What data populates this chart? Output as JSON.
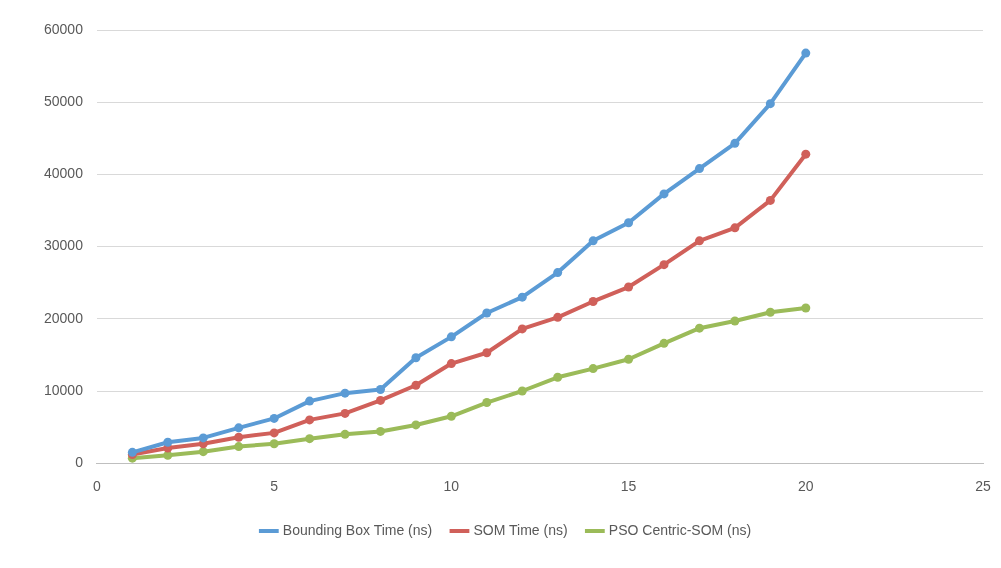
{
  "chart_data": {
    "type": "line",
    "x": [
      1,
      2,
      3,
      4,
      5,
      6,
      7,
      8,
      9,
      10,
      11,
      12,
      13,
      14,
      15,
      16,
      17,
      18,
      19,
      20
    ],
    "series": [
      {
        "name": "Bounding Box Time (ns)",
        "color": "#5b9bd5",
        "values": [
          1500,
          2900,
          3500,
          4900,
          6200,
          8600,
          9700,
          10200,
          14600,
          17500,
          20800,
          23000,
          26400,
          30800,
          33300,
          37300,
          40800,
          44300,
          49800,
          56800
        ]
      },
      {
        "name": "SOM Time (ns)",
        "color": "#d0605a",
        "values": [
          1200,
          2100,
          2700,
          3600,
          4200,
          6000,
          6900,
          8700,
          10800,
          13800,
          15300,
          18600,
          20200,
          22400,
          24400,
          27500,
          30800,
          32600,
          36400,
          42800
        ]
      },
      {
        "name": "PSO Centric-SOM (ns)",
        "color": "#9bbb59",
        "values": [
          700,
          1100,
          1600,
          2300,
          2700,
          3400,
          4000,
          4400,
          5300,
          6500,
          8400,
          10000,
          11900,
          13100,
          14400,
          16600,
          18700,
          19700,
          20900,
          21500
        ]
      }
    ],
    "xlim": [
      0,
      25
    ],
    "xticks": [
      0,
      5,
      10,
      15,
      20,
      25
    ],
    "ylim": [
      0,
      60000
    ],
    "yticks": [
      0,
      10000,
      20000,
      30000,
      40000,
      50000,
      60000
    ],
    "grid": "y",
    "legend": "bottom",
    "marker": "circle",
    "line_style": "solid"
  }
}
